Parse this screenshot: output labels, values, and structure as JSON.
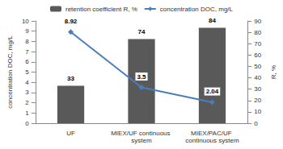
{
  "chart_data": {
    "type": "bar",
    "categories": [
      "UF",
      "MIEX/UF continuous system",
      "MIEX/PAC/UF continuous system"
    ],
    "series": [
      {
        "name": "retention coefficient R, %",
        "type": "bar",
        "axis": "y2",
        "color": "#595959",
        "values": [
          33,
          74,
          84
        ]
      },
      {
        "name": "concentration DOC, mg/L",
        "type": "line",
        "color": "#4a7ebb",
        "marker": "diamond",
        "values": [
          8.92,
          3.5,
          2.04
        ]
      }
    ],
    "y_label": "concentration DOC, mg/L",
    "y2_label": "R, %",
    "ylim": [
      0,
      10
    ],
    "yticks": [
      0,
      1,
      2,
      3,
      4,
      5,
      6,
      7,
      8,
      9,
      10
    ],
    "y2lim": [
      0,
      90
    ],
    "y2ticks": [
      0,
      10,
      20,
      30,
      40,
      50,
      60,
      70,
      80,
      90
    ],
    "grid": false,
    "legend": "top",
    "data_labels": true
  }
}
